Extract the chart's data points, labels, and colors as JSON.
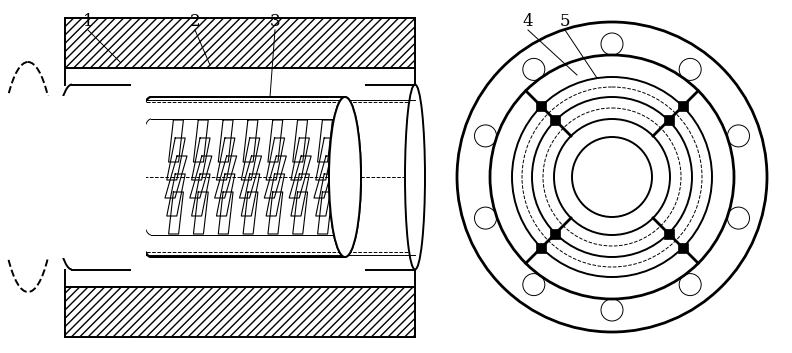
{
  "bg_color": "#ffffff",
  "line_color": "#000000",
  "fig_width": 7.92,
  "fig_height": 3.53,
  "dpi": 100,
  "lw_main": 1.4,
  "lw_thin": 0.7,
  "lw_thick": 2.0
}
